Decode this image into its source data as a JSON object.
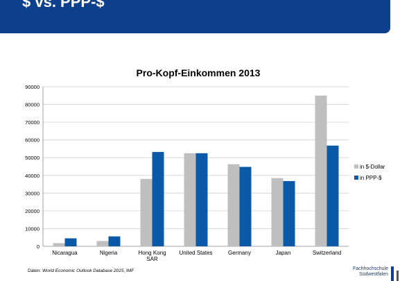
{
  "header": {
    "title": "$ vs. PPP-$"
  },
  "chart_data": {
    "type": "bar",
    "title": "Pro-Kopf-Einkommen 2013",
    "categories": [
      "Nicaragua",
      "Nigeria",
      "Hong Kong SAR",
      "United States",
      "Germany",
      "Japan",
      "Switzerland"
    ],
    "category_lines": [
      [
        "Nicaragua"
      ],
      [
        "Nigeria"
      ],
      [
        "Hong Kong",
        "SAR"
      ],
      [
        "United States"
      ],
      [
        "Germany"
      ],
      [
        "Japan"
      ],
      [
        "Switzerland"
      ]
    ],
    "series": [
      {
        "name": "in $-Dollar",
        "color": "#bfbfbf",
        "values": [
          1800,
          3000,
          38000,
          52500,
          46300,
          38500,
          85000
        ]
      },
      {
        "name": "in PPP-$",
        "color": "#0a5aa8",
        "values": [
          4500,
          5600,
          53200,
          52500,
          44800,
          36800,
          56800
        ]
      }
    ],
    "ylim": [
      0,
      90000
    ],
    "yticks": [
      0,
      10000,
      20000,
      30000,
      40000,
      50000,
      60000,
      70000,
      80000,
      90000
    ],
    "grid": true,
    "legend": "right"
  },
  "footer": {
    "source_prefix": "Daten: ",
    "source_italic": "World Economic Outlook Database 2015",
    "source_suffix": ", IMF",
    "logo_line1": "Fachhochschule",
    "logo_line2": "Südwestfalen"
  }
}
